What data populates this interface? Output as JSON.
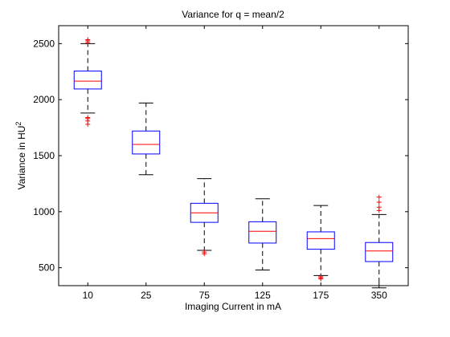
{
  "chart_data": {
    "type": "box",
    "title": "Variance for q = mean/2",
    "xlabel": "Imaging Current in mA",
    "ylabel_base": "Variance in HU",
    "ylabel_sup": "2",
    "categories": [
      "10",
      "25",
      "75",
      "125",
      "175",
      "350"
    ],
    "ylim": [
      340,
      2660
    ],
    "yticks": [
      500,
      1000,
      1500,
      2000,
      2500
    ],
    "ytick_labels": [
      "500",
      "1000",
      "1500",
      "2000",
      "2500"
    ],
    "boxes": [
      {
        "category": "10",
        "whisker_low": 1880,
        "q1": 2095,
        "median": 2165,
        "q3": 2255,
        "whisker_high": 2500,
        "outliers": [
          1780,
          1810,
          1830,
          1840,
          2510,
          2525,
          2535
        ]
      },
      {
        "category": "25",
        "whisker_low": 1330,
        "q1": 1515,
        "median": 1600,
        "q3": 1720,
        "whisker_high": 1970,
        "outliers": []
      },
      {
        "category": "75",
        "whisker_low": 655,
        "q1": 905,
        "median": 990,
        "q3": 1075,
        "whisker_high": 1295,
        "outliers": [
          625,
          640
        ]
      },
      {
        "category": "125",
        "whisker_low": 480,
        "q1": 720,
        "median": 825,
        "q3": 910,
        "whisker_high": 1115,
        "outliers": []
      },
      {
        "category": "175",
        "whisker_low": 430,
        "q1": 665,
        "median": 760,
        "q3": 820,
        "whisker_high": 1055,
        "outliers": [
          400,
          410,
          420
        ]
      },
      {
        "category": "350",
        "whisker_low": 320,
        "q1": 555,
        "median": 650,
        "q3": 725,
        "whisker_high": 975,
        "outliers": [
          1010,
          1040,
          1085,
          1130
        ]
      }
    ],
    "colors": {
      "box": "#0000ff",
      "median": "#ff0000",
      "whisker": "#000000",
      "outlier": "#ff0000"
    },
    "grid": false
  }
}
